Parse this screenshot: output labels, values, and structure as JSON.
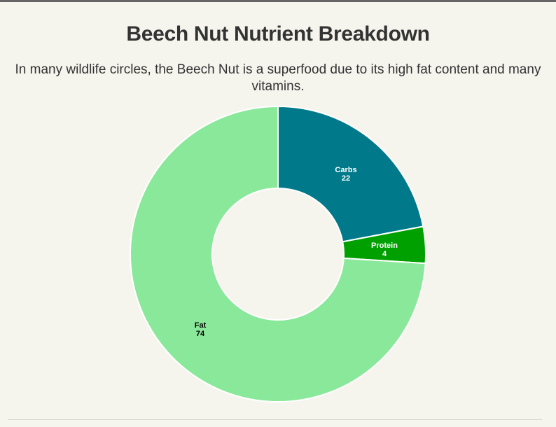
{
  "header": {
    "title": "Beech Nut Nutrient Breakdown",
    "subtitle": "In many wildlife circles, the Beech Nut is a superfood due to its high fat content and many vitamins."
  },
  "chart_data": {
    "type": "pie",
    "variant": "donut",
    "title": "Beech Nut Nutrient Breakdown",
    "subtitle": "In many wildlife circles, the Beech Nut is a superfood due to its high fat content and many vitamins.",
    "categories": [
      "Carbs",
      "Protein",
      "Fat"
    ],
    "values": [
      22,
      4,
      74
    ],
    "colors": [
      "#007a8a",
      "#00a000",
      "#8ae89a"
    ],
    "label_colors": [
      "#ffffff",
      "#ffffff",
      "#000000"
    ],
    "start_angle": "12 o'clock",
    "direction": "clockwise",
    "legend": "none",
    "data_labels": "inside, name and value"
  },
  "labels": {
    "carbs": {
      "name": "Carbs",
      "value": "22"
    },
    "protein": {
      "name": "Protein",
      "value": "4"
    },
    "fat": {
      "name": "Fat",
      "value": "74"
    }
  }
}
